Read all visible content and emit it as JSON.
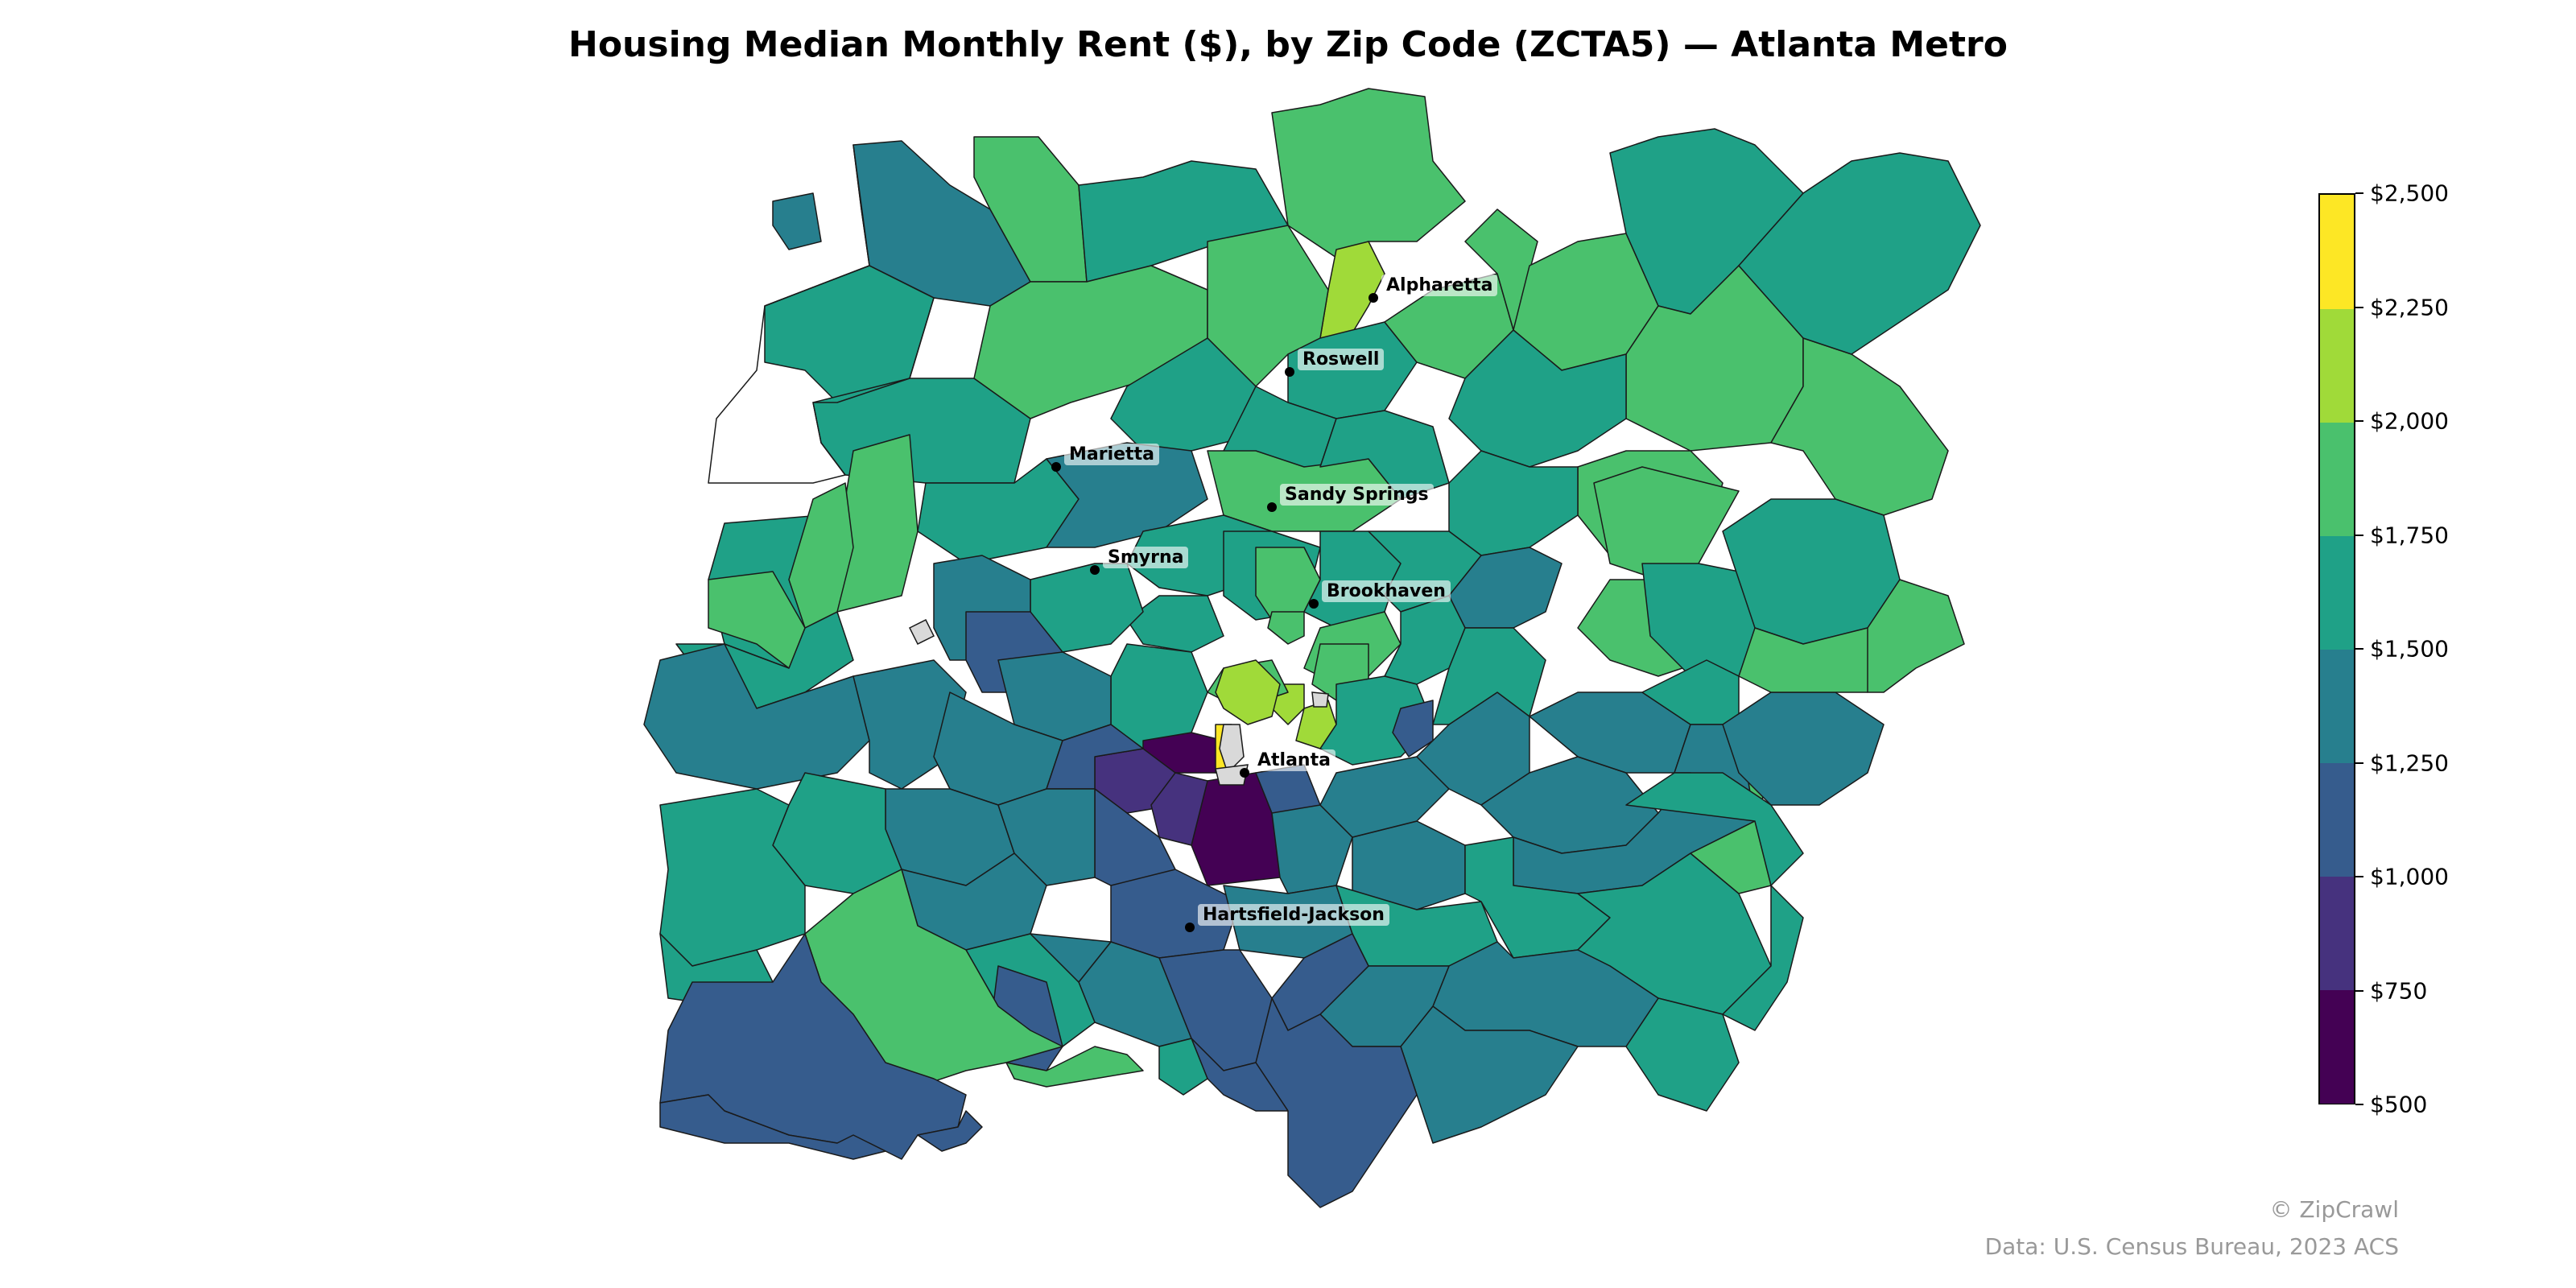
{
  "title": "Housing Median Monthly Rent ($), by Zip Code (ZCTA5) — Atlanta Metro",
  "legend": {
    "min": 500,
    "max": 2500,
    "ticks": [
      "$500",
      "$750",
      "$1,000",
      "$1,250",
      "$1,500",
      "$1,750",
      "$2,000",
      "$2,250",
      "$2,500"
    ],
    "bins": [
      {
        "from": 500,
        "to": 750,
        "color": "#440154"
      },
      {
        "from": 750,
        "to": 1000,
        "color": "#46327e"
      },
      {
        "from": 1000,
        "to": 1250,
        "color": "#365c8d"
      },
      {
        "from": 1250,
        "to": 1500,
        "color": "#277f8e"
      },
      {
        "from": 1500,
        "to": 1750,
        "color": "#1fa187"
      },
      {
        "from": 1750,
        "to": 2000,
        "color": "#4ac16d"
      },
      {
        "from": 2000,
        "to": 2250,
        "color": "#a0da39"
      },
      {
        "from": 2250,
        "to": 2500,
        "color": "#fde725"
      }
    ],
    "no_data_color": "#d9d9d9"
  },
  "cities": [
    {
      "name": "Alpharetta"
    },
    {
      "name": "Roswell"
    },
    {
      "name": "Marietta"
    },
    {
      "name": "Sandy Springs"
    },
    {
      "name": "Smyrna"
    },
    {
      "name": "Brookhaven"
    },
    {
      "name": "Atlanta"
    },
    {
      "name": "Hartsfield-Jackson"
    }
  ],
  "copyright": "© ZipCrawl",
  "source": "Data: U.S. Census Bureau, 2023 ACS"
}
